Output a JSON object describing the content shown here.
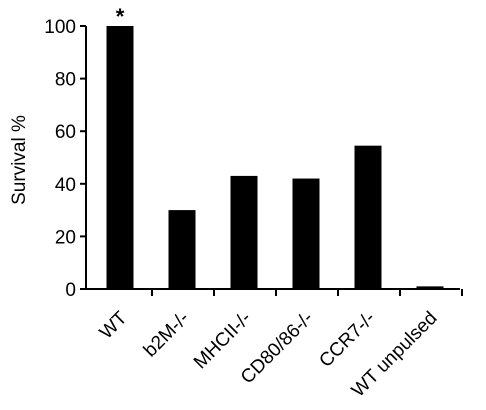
{
  "chart_data": {
    "type": "bar",
    "title": "",
    "xlabel": "",
    "ylabel": "Survival %",
    "ylim": [
      0,
      100
    ],
    "yticks": [
      0,
      20,
      40,
      60,
      80,
      100
    ],
    "categories": [
      "WT",
      "b2M-/-",
      "MHCII-/-",
      "CD80/86-/-",
      "CCR7-/-",
      "WT unpulsed"
    ],
    "values": [
      100,
      30,
      43,
      42,
      54.5,
      1
    ],
    "annotations": [
      {
        "category": "WT",
        "text": "*"
      }
    ],
    "bar_color": "#000000",
    "grid": false,
    "legend": "none"
  }
}
